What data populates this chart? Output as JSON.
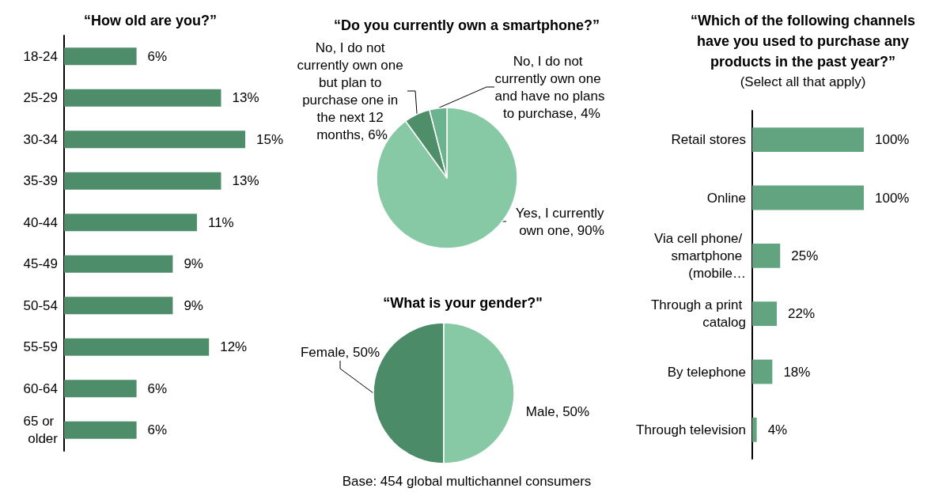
{
  "chart_data": [
    {
      "type": "bar",
      "orientation": "horizontal",
      "title": "“How old are you?”",
      "categories": [
        "18-24",
        "25-29",
        "30-34",
        "35-39",
        "40-44",
        "45-49",
        "50-54",
        "55-59",
        "60-64",
        "65 or older"
      ],
      "values": [
        6,
        13,
        15,
        13,
        11,
        9,
        9,
        12,
        6,
        6
      ],
      "color": "#4e8d69",
      "value_labels": [
        "6%",
        "13%",
        "15%",
        "13%",
        "11%",
        "9%",
        "9%",
        "12%",
        "6%",
        "6%"
      ]
    },
    {
      "type": "pie",
      "title": "“Do you currently own a smartphone?”",
      "categories": [
        "Yes, I currently own one",
        "No, I do not currently own one but plan to purchase one in the next 12 months",
        "No, I do not currently own one and have no plans to purchase"
      ],
      "values": [
        90,
        6,
        4
      ],
      "colors": [
        "#88c9a5",
        "#4e8f6a",
        "#6bb38e"
      ],
      "value_labels": [
        "90%",
        "6%",
        "4%"
      ]
    },
    {
      "type": "pie",
      "title": "“What is your gender?\"",
      "categories": [
        "Female",
        "Male"
      ],
      "values": [
        50,
        50
      ],
      "colors": [
        "#4b8b68",
        "#88c9a5"
      ],
      "value_labels": [
        "50%",
        "50%"
      ],
      "annotations": [
        "Base: 454 global multichannel consumers"
      ]
    },
    {
      "type": "bar",
      "orientation": "horizontal",
      "title": "“Which of the following channels have you used to purchase any products in the past year?”",
      "subtitle": "(Select all that apply)",
      "categories": [
        "Retail stores",
        "Online",
        "Via cell phone/ smartphone (mobile…",
        "Through a print catalog",
        "By telephone",
        "Through television"
      ],
      "values": [
        100,
        100,
        25,
        22,
        18,
        4
      ],
      "color": "#62a47f",
      "value_labels": [
        "100%",
        "100%",
        "25%",
        "22%",
        "18%",
        "4%"
      ]
    }
  ]
}
